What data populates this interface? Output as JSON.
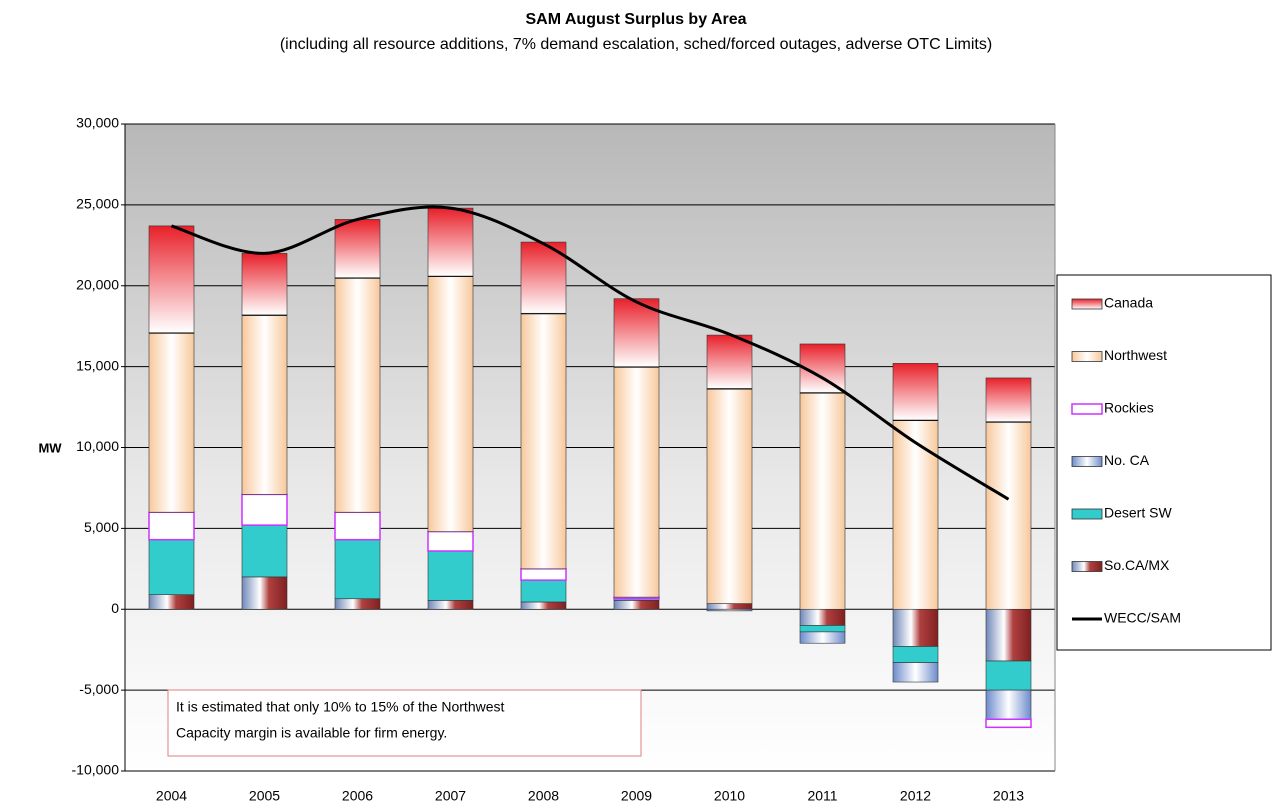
{
  "chart_data": {
    "type": "stacked-bar-line",
    "title": "SAM August Surplus by Area",
    "subtitle": "(including all resource additions, 7% demand escalation, sched/forced outages, adverse OTC Limits)",
    "y_label": "MW",
    "categories": [
      "2004",
      "2005",
      "2006",
      "2007",
      "2008",
      "2009",
      "2010",
      "2011",
      "2012",
      "2013"
    ],
    "series": [
      {
        "name": "Canada",
        "color": "#e8202a",
        "values": [
          6600,
          3800,
          3600,
          4200,
          4400,
          4200,
          3300,
          3000,
          3500,
          2700
        ]
      },
      {
        "name": "Northwest",
        "color": "#f8c89c",
        "values": [
          11100,
          11100,
          14500,
          15800,
          15800,
          14250,
          13300,
          13400,
          11700,
          11600
        ]
      },
      {
        "name": "Rockies",
        "color": "#cc33ff",
        "values": [
          1700,
          1900,
          1700,
          1200,
          700,
          100,
          0,
          0,
          0,
          -500
        ]
      },
      {
        "name": "No. CA",
        "color": "#6d8ccc",
        "values": [
          0,
          0,
          0,
          0,
          0,
          0,
          -100,
          -700,
          -1200,
          -1800
        ]
      },
      {
        "name": "Desert SW",
        "color": "#33cccc",
        "values": [
          3400,
          3200,
          3650,
          3050,
          1350,
          100,
          0,
          -400,
          -1000,
          -1800
        ]
      },
      {
        "name": "So.CA/MX",
        "color": "#7088b8",
        "values": [
          900,
          2000,
          650,
          550,
          450,
          550,
          350,
          -1000,
          -2300,
          -3200
        ]
      }
    ],
    "line": {
      "name": "WECC/SAM",
      "color": "#000000",
      "values": [
        23700,
        22000,
        24100,
        24800,
        22600,
        19000,
        17000,
        14300,
        10300,
        6800
      ]
    },
    "ylim": [
      -10000,
      30000
    ],
    "yticks": [
      {
        "value": -10000,
        "label": "-10,000"
      },
      {
        "value": -5000,
        "label": "-5,000"
      },
      0,
      {
        "value": 5000,
        "label": "5,000"
      },
      {
        "value": 10000,
        "label": "10,000"
      },
      {
        "value": 15000,
        "label": "15,000"
      },
      {
        "value": 20000,
        "label": "20,000"
      },
      {
        "value": 25000,
        "label": "25,000"
      },
      {
        "value": 30000,
        "label": "30,000"
      }
    ],
    "grid": true,
    "legend": "right",
    "annotation": [
      "It is estimated that only 10% to 15% of the Northwest",
      "Capacity margin is available for firm energy."
    ]
  }
}
